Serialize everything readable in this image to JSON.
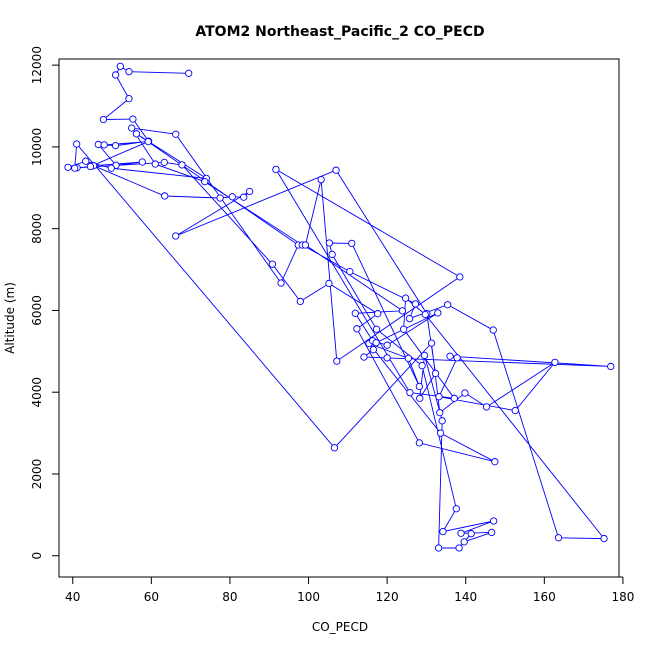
{
  "chart_data": {
    "type": "line",
    "title": "ATOM2 Northeast_Pacific_2 CO_PECD",
    "xlabel": "CO_PECD",
    "ylabel": "Altitude (m)",
    "xlim": [
      36.5,
      179
    ],
    "ylim": [
      -520,
      12150
    ],
    "xticks": [
      40,
      60,
      80,
      100,
      120,
      140,
      160,
      180
    ],
    "yticks": [
      0,
      2000,
      4000,
      6000,
      8000,
      10000,
      12000
    ],
    "grid": false,
    "series": [
      {
        "color": "#0000ff",
        "marker": "open-circle",
        "x": [
          69.5,
          54.3,
          52.1,
          50.9,
          54.3,
          47.8,
          55.3,
          59.3,
          50.9,
          46.5,
          51.0,
          57.7,
          45.3,
          63.4,
          77.5,
          80.6,
          83.5,
          85.0,
          66.2,
          107.0,
          130.1,
          132.3,
          128.3,
          129.5,
          134.0,
          133.1,
          138.3,
          141.4,
          139.6,
          146.6,
          138.8,
          147.1,
          134.2,
          137.6,
          128.9,
          117.3,
          106.0,
          105.3,
          111.0,
          128.2,
          125.4,
          115.4,
          133.6,
          147.4,
          128.2,
          112.3,
          117.6,
          105.2,
          97.9,
          90.8,
          67.8,
          63.3,
          41.1,
          38.8,
          43.3,
          49.8,
          74.0,
          56.2,
          97.4,
          93.0,
          66.2,
          55.0,
          61.0,
          73.6,
          98.4,
          110.5,
          127.2,
          125.7,
          135.4,
          147.0,
          163.6,
          175.2,
          129.7,
          124.7,
          124.2,
          137.1,
          125.8,
          91.7,
          138.5,
          107.2,
          103.2,
          99.2,
          123.9,
          111.9,
          116.3,
          120.0,
          132.9,
          117.2,
          116.5,
          114.1,
          120.0,
          176.9,
          136.0,
          137.8,
          133.2,
          152.6,
          162.7,
          145.3,
          139.8,
          133.4,
          131.3,
          106.6,
          41.0,
          40.5,
          44.5,
          59.2,
          48.0
        ],
        "y": [
          11800,
          11840,
          11970,
          11760,
          11180,
          10670,
          10680,
          10140,
          10030,
          10060,
          9550,
          9630,
          9540,
          8800,
          8750,
          8780,
          8770,
          8910,
          7820,
          9430,
          5920,
          4460,
          3850,
          4900,
          3300,
          190,
          190,
          540,
          340,
          570,
          550,
          850,
          590,
          1150,
          4650,
          5540,
          7370,
          7650,
          7640,
          4140,
          4830,
          5190,
          3000,
          2300,
          2760,
          5550,
          5920,
          6660,
          6220,
          7130,
          9560,
          9620,
          9490,
          9500,
          9650,
          9480,
          9230,
          10320,
          7600,
          6670,
          10310,
          10460,
          9580,
          9150,
          7600,
          6950,
          6160,
          5800,
          6140,
          5520,
          440,
          420,
          5900,
          6300,
          5540,
          3850,
          3990,
          9450,
          6820,
          4760,
          9200,
          7600,
          5990,
          5930,
          5260,
          5150,
          5940,
          5210,
          5040,
          4860,
          4840,
          4630,
          4880,
          4840,
          3890,
          3550,
          4730,
          3640,
          3980,
          3500,
          5200,
          2640,
          10070,
          9480,
          9520,
          10130,
          10050
        ]
      }
    ]
  }
}
